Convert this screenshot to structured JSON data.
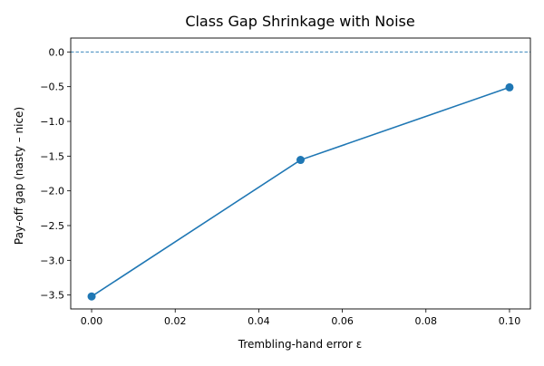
{
  "chart_data": {
    "type": "line",
    "title": "Class Gap Shrinkage with Noise",
    "xlabel": "Trembling-hand error ε",
    "ylabel": "Pay-off gap (nasty – nice)",
    "x": [
      0.0,
      0.05,
      0.1
    ],
    "series": [
      {
        "values": [
          -3.52,
          -1.555,
          -0.51
        ],
        "color": "#1f77b4",
        "marker": "circle"
      }
    ],
    "xlim": [
      -0.005,
      0.105
    ],
    "ylim": [
      -3.7,
      0.2
    ],
    "xticks": [
      0.0,
      0.02,
      0.04,
      0.06,
      0.08,
      0.1
    ],
    "xtick_labels": [
      "0.00",
      "0.02",
      "0.04",
      "0.06",
      "0.08",
      "0.10"
    ],
    "yticks": [
      0.0,
      -0.5,
      -1.0,
      -1.5,
      -2.0,
      -2.5,
      -3.0,
      -3.5
    ],
    "ytick_labels": [
      "0.0",
      "−0.5",
      "−1.0",
      "−1.5",
      "−2.0",
      "−2.5",
      "−3.0",
      "−3.5"
    ],
    "reference_line": {
      "y": 0.0,
      "style": "dashed",
      "color": "#1f77b4"
    },
    "grid": false,
    "legend": "none"
  }
}
